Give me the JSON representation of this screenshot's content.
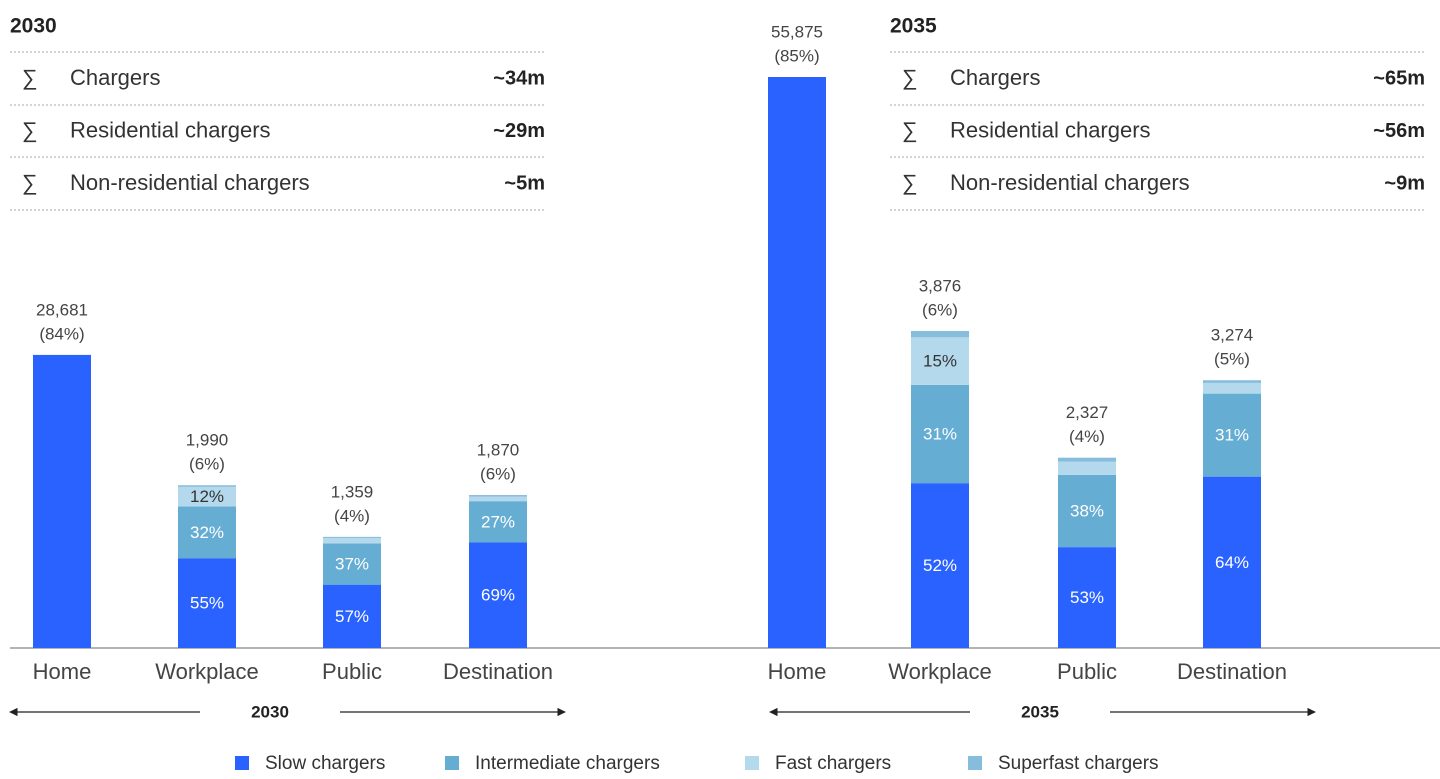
{
  "chart_data": {
    "type": "bar",
    "stacked": true,
    "sum_symbol": "∑",
    "series": [
      {
        "name": "Slow chargers",
        "color": "#2962ff"
      },
      {
        "name": "Intermediate chargers",
        "color": "#66add3"
      },
      {
        "name": "Fast chargers",
        "color": "#b5d9ec"
      },
      {
        "name": "Superfast chargers",
        "color": "#86bddc"
      }
    ],
    "panels": [
      {
        "title": "2030",
        "summary": [
          {
            "label": "Chargers",
            "value": "~34m"
          },
          {
            "label": "Residential chargers",
            "value": "~29m"
          },
          {
            "label": "Non-residential chargers",
            "value": "~5m"
          }
        ],
        "categories": [
          "Home",
          "Workplace",
          "Public",
          "Destination"
        ],
        "axis_label": "2030",
        "totals": [
          28681,
          1990,
          1359,
          1870
        ],
        "total_labels": [
          "28,681",
          "1,990",
          "1,359",
          "1,870"
        ],
        "shares": [
          84,
          6,
          4,
          6
        ],
        "share_labels": [
          "(84%)",
          "(6%)",
          "(4%)",
          "(6%)"
        ],
        "segments": [
          {
            "values": [
              100,
              55,
              57,
              69
            ],
            "value_labels": [
              null,
              "55%",
              "57%",
              "69%"
            ]
          },
          {
            "values": [
              0,
              32,
              37,
              27
            ],
            "value_labels": [
              null,
              "32%",
              "37%",
              "27%"
            ]
          },
          {
            "values": [
              0,
              12,
              5,
              3
            ],
            "value_labels": [
              null,
              "12%",
              null,
              null
            ]
          },
          {
            "values": [
              0,
              1,
              1,
              1
            ],
            "value_labels": [
              null,
              null,
              null,
              null
            ]
          }
        ]
      },
      {
        "title": "2035",
        "summary": [
          {
            "label": "Chargers",
            "value": "~65m"
          },
          {
            "label": "Residential chargers",
            "value": "~56m"
          },
          {
            "label": "Non-residential chargers",
            "value": "~9m"
          }
        ],
        "categories": [
          "Home",
          "Workplace",
          "Public",
          "Destination"
        ],
        "axis_label": "2035",
        "totals": [
          55875,
          3876,
          2327,
          3274
        ],
        "total_labels": [
          "55,875",
          "3,876",
          "2,327",
          "3,274"
        ],
        "shares": [
          85,
          6,
          4,
          5
        ],
        "share_labels": [
          "(85%)",
          "(6%)",
          "(4%)",
          "(5%)"
        ],
        "segments": [
          {
            "values": [
              100,
              52,
              53,
              64
            ],
            "value_labels": [
              null,
              "52%",
              "53%",
              "64%"
            ]
          },
          {
            "values": [
              0,
              31,
              38,
              31
            ],
            "value_labels": [
              null,
              "31%",
              "38%",
              "31%"
            ]
          },
          {
            "values": [
              0,
              15,
              7,
              4
            ],
            "value_labels": [
              null,
              "15%",
              null,
              null
            ]
          },
          {
            "values": [
              0,
              2,
              2,
              1
            ],
            "value_labels": [
              null,
              null,
              null,
              null
            ]
          }
        ]
      }
    ]
  }
}
